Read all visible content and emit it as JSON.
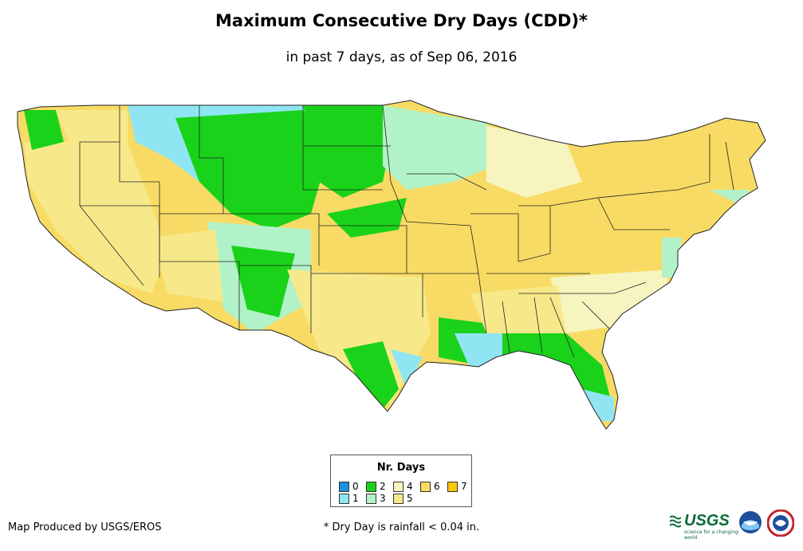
{
  "title": "Maximum Consecutive Dry Days (CDD)*",
  "subtitle": "in past 7 days, as of Sep 06, 2016",
  "legend": {
    "title": "Nr. Days",
    "items": [
      {
        "label": "0",
        "color": "#1f8fe0"
      },
      {
        "label": "1",
        "color": "#8fe6f2"
      },
      {
        "label": "2",
        "color": "#1ad21a"
      },
      {
        "label": "3",
        "color": "#b2f2c8"
      },
      {
        "label": "4",
        "color": "#f6f5c0"
      },
      {
        "label": "5",
        "color": "#f7e98a"
      },
      {
        "label": "6",
        "color": "#f8db64"
      },
      {
        "label": "7",
        "color": "#f8c800"
      }
    ]
  },
  "credit": "Map Produced by USGS/EROS",
  "footnote": "* Dry Day is rainfall < 0.04 in.",
  "logos": {
    "usgs": "USGS",
    "usgs_tagline": "science for a changing world"
  }
}
